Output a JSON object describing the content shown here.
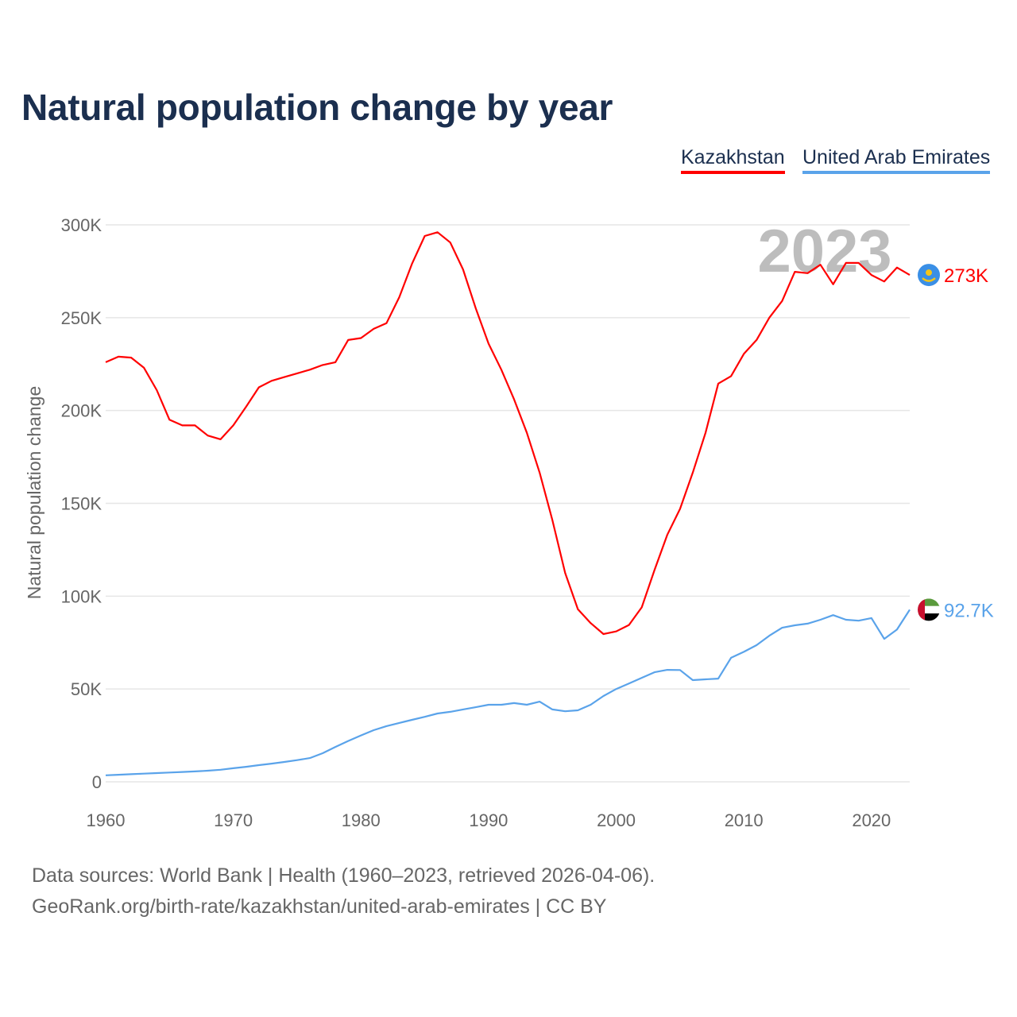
{
  "chart_data": {
    "type": "line",
    "title": "Natural population change by year",
    "ylabel": "Natural population change",
    "xlabel": "",
    "xlim": [
      1960,
      2023
    ],
    "ylim": [
      0,
      300000
    ],
    "x_ticks": [
      "1960",
      "1970",
      "1980",
      "1990",
      "2000",
      "2010",
      "2020"
    ],
    "y_ticks": [
      {
        "v": 0,
        "label": "0"
      },
      {
        "v": 50000,
        "label": "50K"
      },
      {
        "v": 100000,
        "label": "100K"
      },
      {
        "v": 150000,
        "label": "150K"
      },
      {
        "v": 200000,
        "label": "200K"
      },
      {
        "v": 250000,
        "label": "250K"
      },
      {
        "v": 300000,
        "label": "300K"
      }
    ],
    "grid": true,
    "legend": "top-right",
    "year_watermark": "2023",
    "x": [
      1960,
      1961,
      1962,
      1963,
      1964,
      1965,
      1966,
      1967,
      1968,
      1969,
      1970,
      1971,
      1972,
      1973,
      1974,
      1975,
      1976,
      1977,
      1978,
      1979,
      1980,
      1981,
      1982,
      1983,
      1984,
      1985,
      1986,
      1987,
      1988,
      1989,
      1990,
      1991,
      1992,
      1993,
      1994,
      1995,
      1996,
      1997,
      1998,
      1999,
      2000,
      2001,
      2002,
      2003,
      2004,
      2005,
      2006,
      2007,
      2008,
      2009,
      2010,
      2011,
      2012,
      2013,
      2014,
      2015,
      2016,
      2017,
      2018,
      2019,
      2020,
      2021,
      2022,
      2023
    ],
    "series": [
      {
        "name": "Kazakhstan",
        "color": "#ff0000",
        "end_label": "273K",
        "flag": "kazakhstan-flag",
        "values": [
          226000,
          229000,
          228500,
          223000,
          211000,
          195000,
          192000,
          192000,
          186500,
          184500,
          192000,
          202000,
          212500,
          216000,
          218000,
          220000,
          222000,
          224500,
          226000,
          238000,
          239000,
          244000,
          247000,
          261000,
          279000,
          294000,
          296000,
          290500,
          276000,
          255000,
          236000,
          222000,
          206000,
          188000,
          166500,
          141000,
          112500,
          93000,
          85500,
          79600,
          81000,
          84500,
          94000,
          114000,
          133000,
          147000,
          166500,
          188000,
          214500,
          218500,
          230500,
          238000,
          250000,
          259000,
          274700,
          274000,
          278500,
          268000,
          279500,
          279500,
          273000,
          269500,
          277000,
          273000
        ]
      },
      {
        "name": "United Arab Emirates",
        "color": "#5aa3ea",
        "end_label": "92.7K",
        "flag": "uae-flag",
        "values": [
          3500,
          3800,
          4100,
          4400,
          4700,
          5000,
          5300,
          5600,
          6000,
          6500,
          7300,
          8100,
          9000,
          9800,
          10700,
          11700,
          12800,
          15400,
          18800,
          22000,
          25000,
          27800,
          30000,
          31700,
          33400,
          35000,
          36800,
          37700,
          39000,
          40200,
          41500,
          41500,
          42400,
          41500,
          43200,
          39000,
          38000,
          38500,
          41500,
          46200,
          50000,
          53000,
          56000,
          59000,
          60300,
          60200,
          54800,
          55200,
          55600,
          66800,
          70000,
          73600,
          78700,
          83000,
          84300,
          85200,
          87300,
          89800,
          87300,
          86800,
          88200,
          77000,
          82000,
          92700
        ]
      }
    ]
  },
  "footer": {
    "line1": "Data sources: World Bank | Health (1960–2023, retrieved 2026-04-06).",
    "line2": "GeoRank.org/birth-rate/kazakhstan/united-arab-emirates | CC BY"
  }
}
